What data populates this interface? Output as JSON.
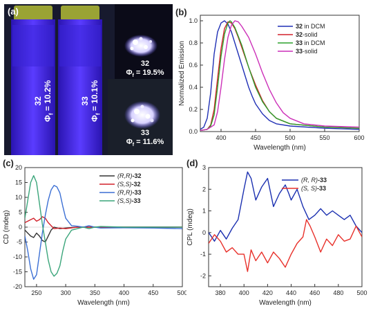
{
  "panel_a": {
    "label": "(a)",
    "cuvette_left": {
      "compound": "32",
      "phi_symbol": "Φ",
      "phi_sub": "f",
      "phi_value": " = 10.2%"
    },
    "cuvette_right": {
      "compound": "33",
      "phi_symbol": "Φ",
      "phi_sub": "f",
      "phi_value": " = 10.1%"
    },
    "solid_top": {
      "compound": "32",
      "phi_symbol": "Φ",
      "phi_sub": "f",
      "phi_value": " = 19.5%"
    },
    "solid_bottom": {
      "compound": "33",
      "phi_symbol": "Φ",
      "phi_sub": "f",
      "phi_value": " = 11.6%"
    },
    "colors": {
      "glow": "#4b2bff",
      "dark": "#0b0b18",
      "cap": "#9aa334"
    }
  },
  "chart_data": [
    {
      "id": "b",
      "panel_label": "(b)",
      "type": "line",
      "xlabel": "Wavelength (nm)",
      "ylabel": "Normalized Emission",
      "xlim": [
        370,
        600
      ],
      "ylim": [
        0,
        1.05
      ],
      "xticks": [
        400,
        450,
        500,
        550,
        600
      ],
      "yticks": [
        0.0,
        0.2,
        0.4,
        0.6,
        0.8,
        1.0
      ],
      "ytick_labels": [
        "0.0",
        "0.2",
        "0.4",
        "0.6",
        "0.8",
        "1.0"
      ],
      "legend_position": "top-right",
      "series": [
        {
          "name_bold": "32",
          "name_rest": " in DCM",
          "color": "#1f2fb5",
          "points": [
            [
              370,
              0.02
            ],
            [
              375,
              0.04
            ],
            [
              380,
              0.12
            ],
            [
              385,
              0.35
            ],
            [
              390,
              0.7
            ],
            [
              395,
              0.9
            ],
            [
              400,
              0.98
            ],
            [
              405,
              1.0
            ],
            [
              410,
              0.97
            ],
            [
              415,
              0.9
            ],
            [
              420,
              0.8
            ],
            [
              425,
              0.7
            ],
            [
              430,
              0.6
            ],
            [
              435,
              0.5
            ],
            [
              440,
              0.4
            ],
            [
              445,
              0.32
            ],
            [
              450,
              0.25
            ],
            [
              460,
              0.16
            ],
            [
              470,
              0.1
            ],
            [
              480,
              0.07
            ],
            [
              500,
              0.05
            ],
            [
              550,
              0.03
            ],
            [
              600,
              0.02
            ]
          ]
        },
        {
          "name_bold": "32",
          "name_rest": "-solid",
          "color": "#d2202a",
          "points": [
            [
              370,
              0.01
            ],
            [
              380,
              0.02
            ],
            [
              385,
              0.06
            ],
            [
              390,
              0.2
            ],
            [
              395,
              0.48
            ],
            [
              400,
              0.75
            ],
            [
              405,
              0.93
            ],
            [
              410,
              0.99
            ],
            [
              415,
              0.98
            ],
            [
              420,
              0.93
            ],
            [
              425,
              0.85
            ],
            [
              430,
              0.76
            ],
            [
              440,
              0.58
            ],
            [
              450,
              0.42
            ],
            [
              460,
              0.28
            ],
            [
              470,
              0.18
            ],
            [
              480,
              0.12
            ],
            [
              500,
              0.07
            ],
            [
              550,
              0.04
            ],
            [
              600,
              0.03
            ]
          ]
        },
        {
          "name_bold": "33",
          "name_rest": " in DCM",
          "color": "#2ca02c",
          "points": [
            [
              370,
              0.01
            ],
            [
              380,
              0.02
            ],
            [
              385,
              0.05
            ],
            [
              390,
              0.15
            ],
            [
              395,
              0.4
            ],
            [
              400,
              0.68
            ],
            [
              405,
              0.88
            ],
            [
              410,
              0.98
            ],
            [
              413,
              1.0
            ],
            [
              415,
              0.99
            ],
            [
              420,
              0.94
            ],
            [
              425,
              0.86
            ],
            [
              430,
              0.78
            ],
            [
              440,
              0.58
            ],
            [
              450,
              0.4
            ],
            [
              460,
              0.27
            ],
            [
              470,
              0.18
            ],
            [
              480,
              0.12
            ],
            [
              500,
              0.07
            ],
            [
              550,
              0.04
            ],
            [
              600,
              0.03
            ]
          ]
        },
        {
          "name_bold": "33",
          "name_rest": "-solid",
          "color": "#cc2fb8",
          "points": [
            [
              370,
              0.01
            ],
            [
              380,
              0.02
            ],
            [
              390,
              0.06
            ],
            [
              395,
              0.18
            ],
            [
              400,
              0.4
            ],
            [
              405,
              0.65
            ],
            [
              410,
              0.85
            ],
            [
              415,
              0.96
            ],
            [
              420,
              1.0
            ],
            [
              425,
              0.99
            ],
            [
              430,
              0.95
            ],
            [
              440,
              0.85
            ],
            [
              450,
              0.7
            ],
            [
              460,
              0.53
            ],
            [
              470,
              0.38
            ],
            [
              480,
              0.26
            ],
            [
              490,
              0.17
            ],
            [
              500,
              0.12
            ],
            [
              520,
              0.07
            ],
            [
              550,
              0.05
            ],
            [
              600,
              0.04
            ]
          ]
        }
      ]
    },
    {
      "id": "c",
      "panel_label": "(c)",
      "type": "line",
      "xlabel": "Wavelength (nm)",
      "ylabel": "CD (mdeg)",
      "xlim": [
        230,
        500
      ],
      "ylim": [
        -20,
        20
      ],
      "xticks": [
        250,
        300,
        350,
        400,
        450,
        500
      ],
      "yticks": [
        -20,
        -15,
        -10,
        -5,
        0,
        5,
        10,
        15,
        20
      ],
      "legend_position": "top-right",
      "series": [
        {
          "name_italic": "(R,R)",
          "name_bold": "-32",
          "color": "#333333",
          "points": [
            [
              230,
              -1
            ],
            [
              235,
              -2
            ],
            [
              240,
              -3
            ],
            [
              245,
              -3.5
            ],
            [
              250,
              -2
            ],
            [
              255,
              -3
            ],
            [
              260,
              -4.5
            ],
            [
              265,
              -5
            ],
            [
              270,
              -3
            ],
            [
              275,
              -1
            ],
            [
              280,
              0
            ],
            [
              290,
              -0.5
            ],
            [
              300,
              -0.3
            ],
            [
              320,
              0
            ],
            [
              350,
              0
            ],
            [
              400,
              0
            ],
            [
              500,
              0
            ]
          ]
        },
        {
          "name_italic": "(S,S)",
          "name_bold": "-32",
          "color": "#d2202a",
          "points": [
            [
              230,
              1.5
            ],
            [
              235,
              2
            ],
            [
              240,
              2.5
            ],
            [
              245,
              3
            ],
            [
              250,
              2
            ],
            [
              255,
              2.5
            ],
            [
              260,
              3.5
            ],
            [
              265,
              3
            ],
            [
              270,
              1.5
            ],
            [
              275,
              0.5
            ],
            [
              280,
              -0.5
            ],
            [
              290,
              -0.3
            ],
            [
              300,
              -0.5
            ],
            [
              320,
              0
            ],
            [
              350,
              0
            ],
            [
              400,
              0
            ],
            [
              500,
              0
            ]
          ]
        },
        {
          "name_italic": "(R,R)",
          "name_bold": "-33",
          "color": "#3b6fd4",
          "points": [
            [
              230,
              -3
            ],
            [
              235,
              -8
            ],
            [
              240,
              -14
            ],
            [
              245,
              -17.5
            ],
            [
              250,
              -16
            ],
            [
              255,
              -9
            ],
            [
              260,
              -2
            ],
            [
              265,
              4
            ],
            [
              270,
              9
            ],
            [
              275,
              12.5
            ],
            [
              280,
              14
            ],
            [
              285,
              13.5
            ],
            [
              290,
              11.5
            ],
            [
              295,
              7
            ],
            [
              300,
              3
            ],
            [
              310,
              0.5
            ],
            [
              320,
              0.3
            ],
            [
              330,
              0
            ],
            [
              340,
              0.5
            ],
            [
              350,
              0
            ],
            [
              360,
              -0.3
            ],
            [
              400,
              -0.2
            ],
            [
              450,
              -0.3
            ],
            [
              500,
              -0.5
            ]
          ]
        },
        {
          "name_italic": "(S,S)",
          "name_bold": "-33",
          "color": "#3aa57a",
          "points": [
            [
              230,
              3
            ],
            [
              235,
              9
            ],
            [
              240,
              15
            ],
            [
              245,
              17.3
            ],
            [
              250,
              15
            ],
            [
              255,
              8
            ],
            [
              260,
              1
            ],
            [
              265,
              -5
            ],
            [
              270,
              -11
            ],
            [
              275,
              -15
            ],
            [
              280,
              -16.5
            ],
            [
              285,
              -15.5
            ],
            [
              290,
              -13
            ],
            [
              295,
              -8
            ],
            [
              300,
              -4
            ],
            [
              310,
              -1
            ],
            [
              320,
              -0.5
            ],
            [
              330,
              0
            ],
            [
              340,
              -0.5
            ],
            [
              350,
              0
            ],
            [
              360,
              0.2
            ],
            [
              400,
              0
            ],
            [
              450,
              0
            ],
            [
              500,
              0
            ]
          ]
        }
      ]
    },
    {
      "id": "d",
      "panel_label": "(d)",
      "type": "line",
      "xlabel": "Wavelength (nm)",
      "ylabel": "CPL (mdeg)",
      "xlim": [
        370,
        500
      ],
      "ylim": [
        -2.5,
        3
      ],
      "xticks": [
        380,
        400,
        420,
        440,
        460,
        480,
        500
      ],
      "yticks": [
        -2,
        -1,
        0,
        1,
        2,
        3
      ],
      "legend_position": "top-right",
      "series": [
        {
          "name_italic": "(R, R)",
          "name_bold": "-33",
          "color": "#1a2fb0",
          "points": [
            [
              370,
              0.0
            ],
            [
              375,
              -0.4
            ],
            [
              380,
              0.1
            ],
            [
              385,
              -0.3
            ],
            [
              390,
              0.2
            ],
            [
              395,
              0.6
            ],
            [
              400,
              2.0
            ],
            [
              403,
              2.8
            ],
            [
              406,
              2.5
            ],
            [
              410,
              1.5
            ],
            [
              415,
              2.1
            ],
            [
              420,
              2.5
            ],
            [
              425,
              1.2
            ],
            [
              430,
              1.8
            ],
            [
              435,
              2.2
            ],
            [
              438,
              1.8
            ],
            [
              440,
              1.5
            ],
            [
              445,
              2.0
            ],
            [
              450,
              1.2
            ],
            [
              455,
              0.6
            ],
            [
              460,
              0.8
            ],
            [
              465,
              1.1
            ],
            [
              470,
              0.8
            ],
            [
              475,
              1.0
            ],
            [
              480,
              0.8
            ],
            [
              485,
              0.6
            ],
            [
              490,
              0.8
            ],
            [
              495,
              0.3
            ],
            [
              500,
              0.0
            ]
          ]
        },
        {
          "name_italic": "(S, S)",
          "name_bold": "-33",
          "color": "#e8302a",
          "points": [
            [
              370,
              -0.5
            ],
            [
              375,
              -0.1
            ],
            [
              380,
              -0.4
            ],
            [
              385,
              -0.9
            ],
            [
              390,
              -0.7
            ],
            [
              395,
              -1.0
            ],
            [
              400,
              -1.0
            ],
            [
              403,
              -1.8
            ],
            [
              406,
              -0.8
            ],
            [
              410,
              -1.3
            ],
            [
              415,
              -0.9
            ],
            [
              420,
              -1.4
            ],
            [
              425,
              -0.9
            ],
            [
              430,
              -1.2
            ],
            [
              435,
              -1.6
            ],
            [
              440,
              -1.0
            ],
            [
              445,
              -0.5
            ],
            [
              450,
              -0.2
            ],
            [
              453,
              0.6
            ],
            [
              456,
              0.3
            ],
            [
              460,
              -0.2
            ],
            [
              465,
              -0.9
            ],
            [
              470,
              -0.3
            ],
            [
              475,
              -0.6
            ],
            [
              480,
              -0.1
            ],
            [
              485,
              -0.4
            ],
            [
              490,
              -0.3
            ],
            [
              495,
              0.3
            ],
            [
              500,
              -0.2
            ]
          ]
        }
      ]
    }
  ]
}
